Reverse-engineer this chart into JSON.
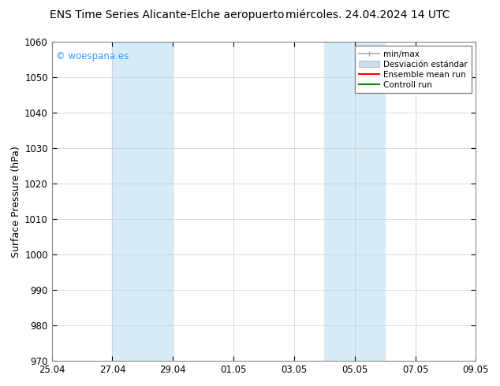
{
  "title_left": "ENS Time Series Alicante-Elche aeropuerto",
  "title_right": "miércoles. 24.04.2024 14 UTC",
  "ylabel": "Surface Pressure (hPa)",
  "ylim": [
    970,
    1060
  ],
  "yticks": [
    970,
    980,
    990,
    1000,
    1010,
    1020,
    1030,
    1040,
    1050,
    1060
  ],
  "xtick_labels": [
    "25.04",
    "27.04",
    "29.04",
    "01.05",
    "03.05",
    "05.05",
    "07.05",
    "09.05"
  ],
  "xtick_positions": [
    0,
    1,
    2,
    3,
    4,
    5,
    6,
    7
  ],
  "xlim": [
    0,
    7
  ],
  "watermark": "© woespana.es",
  "watermark_color": "#3399ff",
  "background_color": "#ffffff",
  "plot_bg_color": "#ffffff",
  "shaded_bands": [
    {
      "xstart": 1.0,
      "xend": 2.0,
      "color": "#d6ecf8"
    },
    {
      "xstart": 4.5,
      "xend": 5.5,
      "color": "#d6ecf8"
    }
  ],
  "legend_labels": [
    "min/max",
    "Desviación estándar",
    "Ensemble mean run",
    "Controll run"
  ],
  "legend_colors": [
    "#aaaaaa",
    "#c8def0",
    "#ff0000",
    "#008800"
  ],
  "title_fontsize": 10,
  "tick_fontsize": 8.5,
  "ylabel_fontsize": 9,
  "legend_fontsize": 7.5
}
